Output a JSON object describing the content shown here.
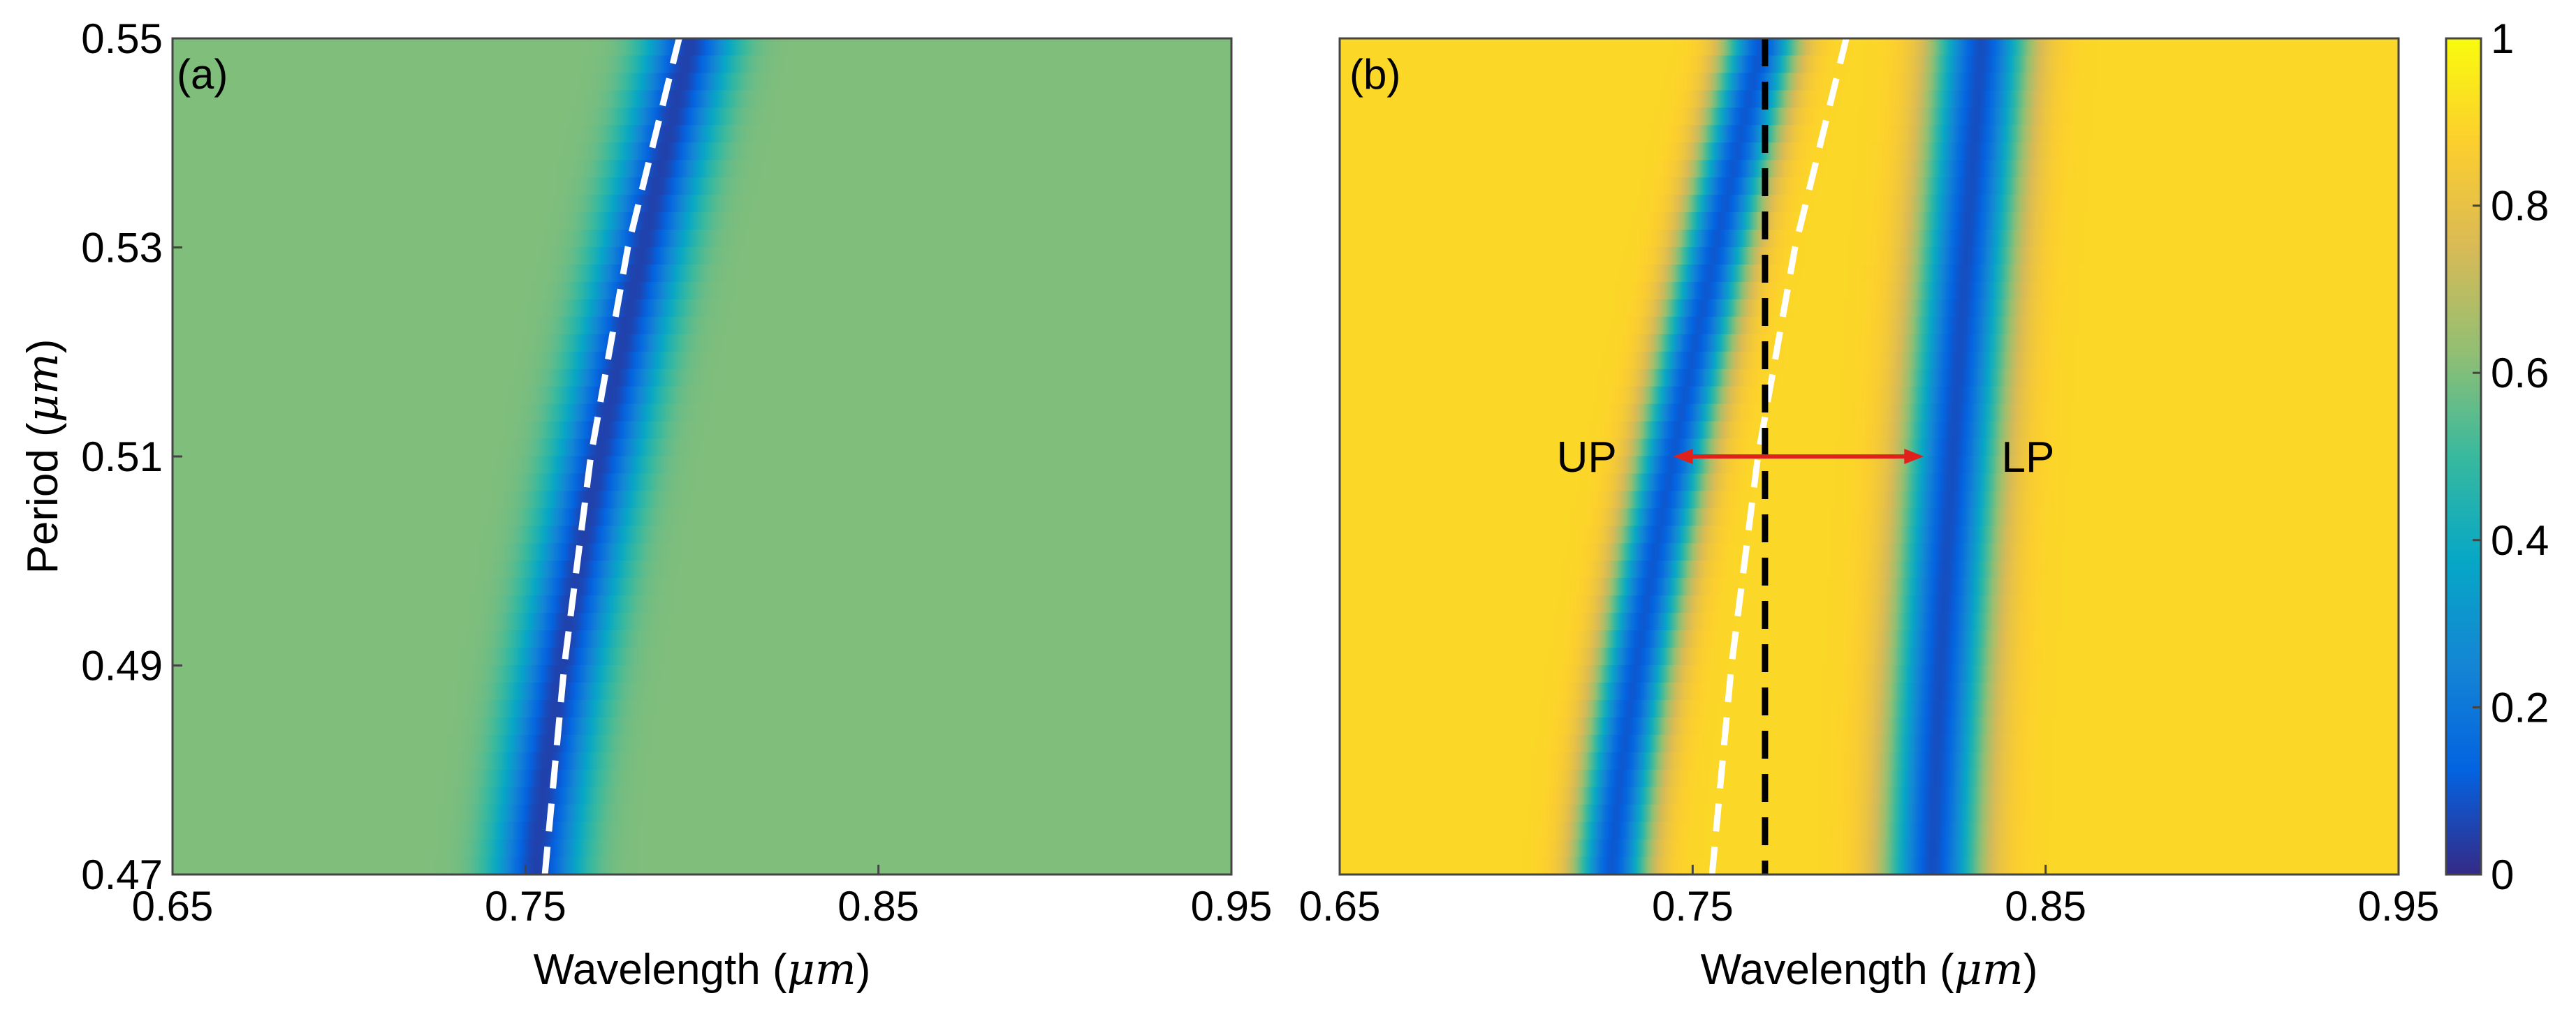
{
  "chart_data": [
    {
      "type": "heatmap",
      "panel_label": "(a)",
      "xlabel_text": "Wavelength (",
      "xlabel_unit": "μm",
      "xlabel_close": ")",
      "ylabel_text": "Period (",
      "ylabel_unit": "μm",
      "ylabel_close": ")",
      "xlim": [
        0.65,
        0.95
      ],
      "ylim": [
        0.47,
        0.55
      ],
      "xticks": [
        "0.65",
        "0.75",
        "0.85",
        "0.95"
      ],
      "xtick_values": [
        0.65,
        0.75,
        0.85,
        0.95
      ],
      "yticks": [
        "0.47",
        "0.49",
        "0.51",
        "0.53",
        "0.55"
      ],
      "ytick_values": [
        0.47,
        0.49,
        0.51,
        0.53,
        0.55
      ],
      "background_value": 0.6,
      "dip": {
        "value": 0.05,
        "width_um": 0.012,
        "center_at_ymin": 0.753,
        "center_at_ymax": 0.797
      },
      "dashed_curve": {
        "color": "#ffffff",
        "points": [
          [
            0.7555,
            0.47
          ],
          [
            0.761,
            0.49
          ],
          [
            0.7685,
            0.51
          ],
          [
            0.779,
            0.53
          ],
          [
            0.7935,
            0.55
          ]
        ]
      }
    },
    {
      "type": "heatmap",
      "panel_label": "(b)",
      "xlabel_text": "Wavelength (",
      "xlabel_unit": "μm",
      "xlabel_close": ")",
      "xlim": [
        0.65,
        0.95
      ],
      "ylim": [
        0.47,
        0.55
      ],
      "xticks": [
        "0.65",
        "0.75",
        "0.85",
        "0.95"
      ],
      "xtick_values": [
        0.65,
        0.75,
        0.85,
        0.95
      ],
      "background_value": 0.9,
      "dips": [
        {
          "name": "UP",
          "value": 0.1,
          "width_um": 0.01,
          "center_at_ymin": 0.727,
          "center_at_ymax": 0.77
        },
        {
          "name": "LP",
          "value": 0.08,
          "width_um": 0.013,
          "center_at_ymin": 0.818,
          "center_at_ymax": 0.832
        }
      ],
      "dashed_curve": {
        "color": "#ffffff",
        "points": [
          [
            0.7555,
            0.47
          ],
          [
            0.761,
            0.49
          ],
          [
            0.7685,
            0.51
          ],
          [
            0.779,
            0.53
          ],
          [
            0.7935,
            0.55
          ]
        ]
      },
      "vertical_line": {
        "x": 0.7705,
        "color": "#000000"
      },
      "arrow": {
        "from": 0.7445,
        "to": 0.8155,
        "y": 0.51,
        "color": "#e0201a"
      },
      "annotations": [
        {
          "text": "UP",
          "x": 0.72,
          "y": 0.51
        },
        {
          "text": "LP",
          "x": 0.845,
          "y": 0.51
        }
      ],
      "colorbar": {
        "range": [
          0,
          1
        ],
        "ticks": [
          "0",
          "0.2",
          "0.4",
          "0.6",
          "0.8",
          "1"
        ],
        "tick_values": [
          0,
          0.2,
          0.4,
          0.6,
          0.8,
          1
        ],
        "colormap": "parula",
        "stops": [
          "#352a87",
          "#0363e1",
          "#1485d4",
          "#06a7c6",
          "#38b99e",
          "#92bf73",
          "#d9ba56",
          "#fcce2e",
          "#f9fb0e"
        ]
      }
    }
  ]
}
